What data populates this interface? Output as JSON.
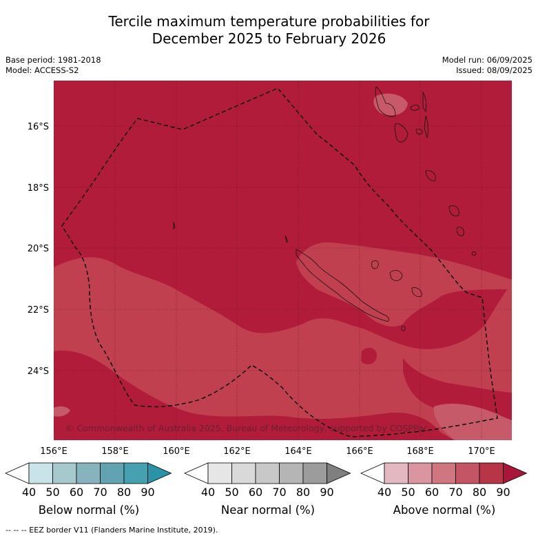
{
  "header": {
    "title_line1": "Tercile maximum temperature probabilities for",
    "title_line2": "December 2025 to February 2026",
    "base_period": "Base period: 1981-2018",
    "model": "Model: ACCESS-S2",
    "model_run": "Model run: 06/09/2025",
    "issued": "Issued: 08/09/2025"
  },
  "map": {
    "lat_labels": [
      "16°S",
      "18°S",
      "20°S",
      "22°S",
      "24°S"
    ],
    "lon_labels": [
      "156°E",
      "158°E",
      "160°E",
      "162°E",
      "164°E",
      "166°E",
      "168°E",
      "170°E"
    ],
    "copyright": "© Commonwealth of Australia 2025, Bureau of Meteorology, supported by COSPPac",
    "colors": {
      "above_80_90": "#b01c39",
      "above_70_80": "#c0404f",
      "above_60_70": "#c75a68"
    }
  },
  "colorbars": [
    {
      "label": "Below normal (%)",
      "ticks": [
        "40",
        "50",
        "60",
        "70",
        "80",
        "90"
      ],
      "colors": [
        "#ffffff",
        "#c9e3e8",
        "#a6c9ce",
        "#86b3bc",
        "#62a3b1",
        "#46a0b0",
        "#2a93a6"
      ]
    },
    {
      "label": "Near normal (%)",
      "ticks": [
        "40",
        "50",
        "60",
        "70",
        "80",
        "90"
      ],
      "colors": [
        "#ffffff",
        "#e6e6e6",
        "#d9d9d9",
        "#c8c8c8",
        "#b5b5b5",
        "#9c9c9c",
        "#7f7f7f"
      ]
    },
    {
      "label": "Above normal (%)",
      "ticks": [
        "40",
        "50",
        "60",
        "70",
        "80",
        "90"
      ],
      "colors": [
        "#ffffff",
        "#e3b8c0",
        "#da96a0",
        "#cf7680",
        "#c45565",
        "#b83447",
        "#a8173a"
      ]
    }
  ],
  "footer": {
    "legend_text": "--  --  -- EEZ border V11 (Flanders Marine Institute, 2019)."
  }
}
